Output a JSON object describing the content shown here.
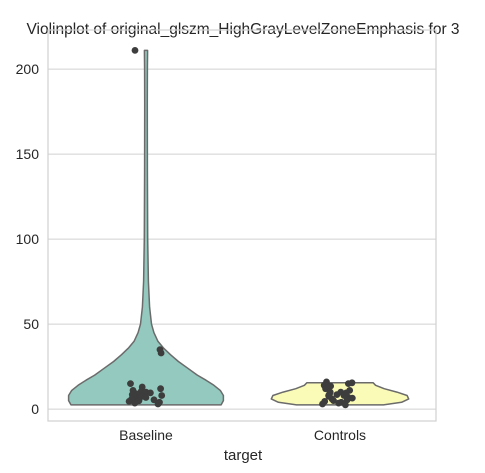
{
  "chart_data": {
    "type": "violin",
    "title": "Violinplot of original_glszm_HighGrayLevelZoneEmphasis for 3",
    "xlabel": "target",
    "ylabel": "",
    "categories": [
      "Baseline",
      "Controls"
    ],
    "ylim": [
      -7,
      223
    ],
    "yticks": [
      0,
      50,
      100,
      150,
      200
    ],
    "grid": "horizontal",
    "colors": {
      "Baseline": "#93c9be",
      "Controls": "#fbfbb8",
      "outline": "#6b6b6b",
      "points": "#3d3d3d",
      "grid": "#d0d0d0"
    },
    "violins": [
      {
        "category": "Baseline",
        "range": [
          2.5,
          211
        ],
        "density_profile": [
          [
            2.5,
            0.95
          ],
          [
            5,
            0.98
          ],
          [
            8,
            0.98
          ],
          [
            11,
            0.94
          ],
          [
            14,
            0.86
          ],
          [
            17,
            0.76
          ],
          [
            20,
            0.65
          ],
          [
            24,
            0.53
          ],
          [
            28,
            0.41
          ],
          [
            32,
            0.31
          ],
          [
            36,
            0.22
          ],
          [
            40,
            0.15
          ],
          [
            45,
            0.1
          ],
          [
            50,
            0.07
          ],
          [
            60,
            0.045
          ],
          [
            75,
            0.03
          ],
          [
            100,
            0.022
          ],
          [
            140,
            0.018
          ],
          [
            180,
            0.017
          ],
          [
            200,
            0.018
          ],
          [
            211,
            0.02
          ]
        ],
        "points": [
          211,
          35,
          33,
          15,
          13,
          12,
          11,
          10.5,
          10,
          9.5,
          9,
          8.5,
          8,
          7.5,
          7,
          6.8,
          6.5,
          6,
          5.5,
          5,
          4.8,
          4.5,
          4,
          3.5,
          3
        ]
      },
      {
        "category": "Controls",
        "range": [
          2.5,
          15.5
        ],
        "density_profile": [
          [
            2.5,
            0.55
          ],
          [
            4,
            0.78
          ],
          [
            6,
            0.87
          ],
          [
            8,
            0.85
          ],
          [
            10,
            0.72
          ],
          [
            12,
            0.56
          ],
          [
            14,
            0.45
          ],
          [
            15.5,
            0.42
          ]
        ],
        "points": [
          16,
          15.5,
          15,
          14,
          13.5,
          12,
          11,
          10,
          10,
          9.5,
          9,
          8.5,
          8,
          8,
          7.5,
          7,
          6.5,
          6,
          5.5,
          5,
          4.5,
          4,
          3.5,
          3,
          2.5
        ]
      }
    ]
  }
}
